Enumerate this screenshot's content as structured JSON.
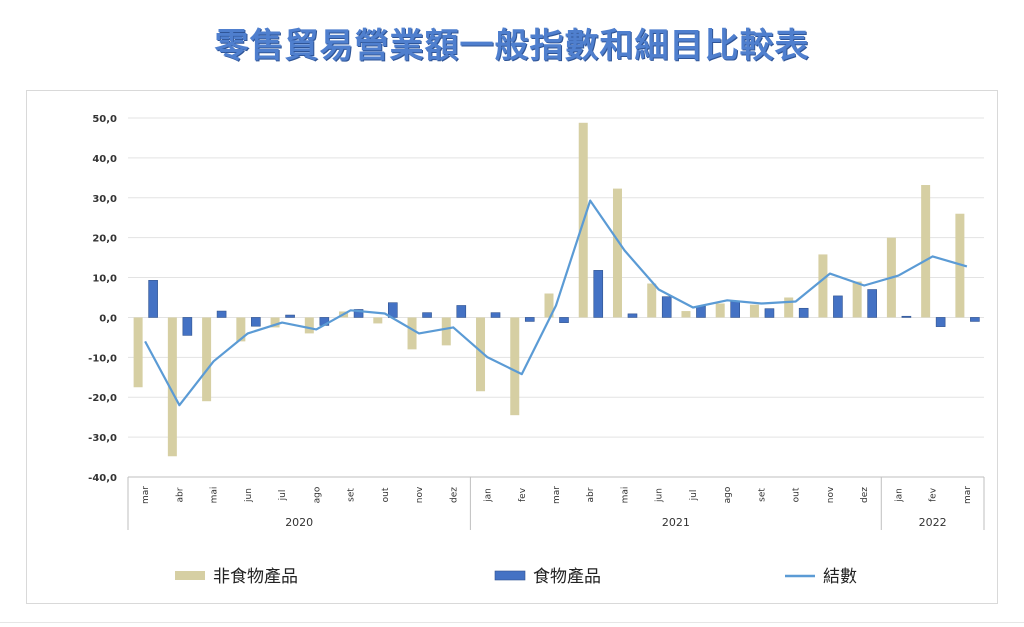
{
  "title": "零售貿易營業額一般指數和細目比較表",
  "chart_data": {
    "type": "bar",
    "ylim": [
      -40,
      50
    ],
    "yticks": [
      "50,0",
      "40,0",
      "30,0",
      "20,0",
      "10,0",
      "0,0",
      "-10,0",
      "-20,0",
      "-30,0",
      "-40,0"
    ],
    "yticks_values": [
      50,
      40,
      30,
      20,
      10,
      0,
      -10,
      -20,
      -30,
      -40
    ],
    "categories": [
      "mar",
      "abr",
      "mai",
      "jun",
      "jul",
      "ago",
      "set",
      "out",
      "nov",
      "dez",
      "jan",
      "fev",
      "mar",
      "abr",
      "mai",
      "jun",
      "jul",
      "ago",
      "set",
      "out",
      "nov",
      "dez",
      "jan",
      "fev",
      "mar"
    ],
    "years": [
      {
        "label": "2020",
        "start": 0,
        "end": 9
      },
      {
        "label": "2021",
        "start": 10,
        "end": 21
      },
      {
        "label": "2022",
        "start": 22,
        "end": 24
      }
    ],
    "grid": true,
    "legend_position": "bottom",
    "series": [
      {
        "name": "非食物產品",
        "kind": "bar",
        "color": "#d6cfa3",
        "values": [
          -17.5,
          -34.8,
          -21,
          -6,
          -2.5,
          -4,
          1.5,
          -1.5,
          -8,
          -7,
          -18.5,
          -24.5,
          6,
          48.8,
          32.3,
          8.5,
          1.6,
          3.5,
          3.2,
          5,
          15.8,
          9,
          20,
          33.2,
          26
        ]
      },
      {
        "name": "食物產品",
        "kind": "bar",
        "color": "#4472c4",
        "values": [
          9.3,
          -4.5,
          1.6,
          -2.2,
          0.6,
          -2,
          2,
          3.7,
          1.2,
          3,
          1.2,
          -1,
          -1.3,
          11.8,
          0.9,
          5.2,
          2.8,
          4,
          2.2,
          2.3,
          5.4,
          7,
          0.3,
          -2.3,
          -1
        ]
      },
      {
        "name": "結數",
        "kind": "line",
        "color": "#5b9bd5",
        "values": [
          -6,
          -22,
          -11,
          -4,
          -1.3,
          -3,
          1.8,
          1,
          -4,
          -2.5,
          -10,
          -14.2,
          3,
          29.3,
          16.8,
          7,
          2.5,
          4.3,
          3.5,
          4,
          11,
          8,
          10.5,
          15.3,
          12.8
        ]
      }
    ]
  }
}
